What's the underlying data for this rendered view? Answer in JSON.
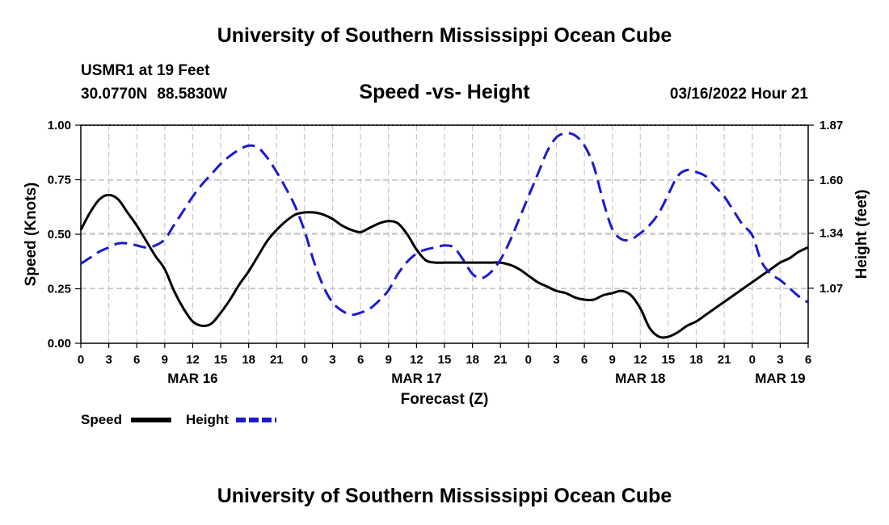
{
  "header": {
    "title": "University of Southern Mississippi Ocean Cube",
    "station": "USMR1 at 19 Feet",
    "latitude": "30.0770N",
    "longitude": "88.5830W",
    "datetime": "03/16/2022 Hour 21"
  },
  "footer": {
    "title": "University of Southern Mississippi Ocean Cube"
  },
  "legend": {
    "speed_label": "Speed",
    "height_label": "Height"
  },
  "colors": {
    "speed": "#000000",
    "height": "#1a1acc",
    "grid": "#c8c8c8",
    "axis": "#000000"
  },
  "chart_data": {
    "type": "line",
    "title": "Speed -vs- Height",
    "xlabel": "Forecast (Z)",
    "ylabel_left": "Speed (Knots)",
    "ylabel_right": "Height (feet)",
    "x_unit": "forecast hours from Mar 16 00Z",
    "xlim": [
      0,
      78
    ],
    "ylim_left": [
      0,
      1.0
    ],
    "ylim_right": [
      0.8,
      1.87
    ],
    "grid": true,
    "x_ticks": [
      0,
      3,
      6,
      9,
      12,
      15,
      18,
      21,
      24,
      27,
      30,
      33,
      36,
      39,
      42,
      45,
      48,
      51,
      54,
      57,
      60,
      63,
      66,
      69,
      72,
      75,
      78
    ],
    "x_tick_labels": [
      "0",
      "3",
      "6",
      "9",
      "12",
      "15",
      "18",
      "21",
      "0",
      "3",
      "6",
      "9",
      "12",
      "15",
      "18",
      "21",
      "0",
      "3",
      "6",
      "9",
      "12",
      "15",
      "18",
      "21",
      "0",
      "3",
      "6"
    ],
    "date_labels": [
      {
        "hour": 12,
        "label": "MAR 16"
      },
      {
        "hour": 36,
        "label": "MAR 17"
      },
      {
        "hour": 60,
        "label": "MAR 18"
      },
      {
        "hour": 75,
        "label": "MAR 19"
      }
    ],
    "y_left_ticks": [
      0.0,
      0.25,
      0.5,
      0.75,
      1.0
    ],
    "y_left_tick_labels": [
      "0.00",
      "0.25",
      "0.50",
      "0.75",
      "1.00"
    ],
    "y_right_ticks": [
      1.07,
      1.34,
      1.6,
      1.87
    ],
    "y_right_tick_labels": [
      "1.07",
      "1.34",
      "1.60",
      "1.87"
    ],
    "series": [
      {
        "name": "Speed",
        "axis": "left",
        "style": "solid",
        "x": [
          0,
          1,
          2,
          3,
          4,
          5,
          6,
          7,
          8,
          9,
          10,
          11,
          12,
          13,
          14,
          15,
          16,
          17,
          18,
          19,
          20,
          21,
          22,
          23,
          24,
          25,
          26,
          27,
          28,
          29,
          30,
          31,
          32,
          33,
          34,
          35,
          36,
          37,
          38,
          39,
          40,
          41,
          42,
          43,
          44,
          45,
          46,
          47,
          48,
          49,
          50,
          51,
          52,
          53,
          54,
          55,
          56,
          57,
          58,
          59,
          60,
          61,
          62,
          63,
          64,
          65,
          66,
          67,
          68,
          69,
          70,
          71,
          72,
          73,
          74,
          75,
          76,
          77,
          78
        ],
        "values": [
          0.52,
          0.6,
          0.66,
          0.68,
          0.66,
          0.6,
          0.54,
          0.47,
          0.4,
          0.34,
          0.24,
          0.16,
          0.1,
          0.08,
          0.09,
          0.14,
          0.2,
          0.27,
          0.33,
          0.4,
          0.47,
          0.52,
          0.56,
          0.59,
          0.6,
          0.6,
          0.59,
          0.57,
          0.54,
          0.52,
          0.51,
          0.53,
          0.55,
          0.56,
          0.55,
          0.5,
          0.43,
          0.38,
          0.37,
          0.37,
          0.37,
          0.37,
          0.37,
          0.37,
          0.37,
          0.37,
          0.36,
          0.34,
          0.31,
          0.28,
          0.26,
          0.24,
          0.23,
          0.21,
          0.2,
          0.2,
          0.22,
          0.23,
          0.24,
          0.22,
          0.16,
          0.07,
          0.03,
          0.03,
          0.05,
          0.08,
          0.1,
          0.13,
          0.16,
          0.19,
          0.22,
          0.25,
          0.28,
          0.31,
          0.34,
          0.37,
          0.39,
          0.42,
          0.44
        ]
      },
      {
        "name": "Height",
        "axis": "right",
        "style": "dashed",
        "x": [
          0,
          1,
          2,
          3,
          4,
          5,
          6,
          7,
          8,
          9,
          10,
          11,
          12,
          13,
          14,
          15,
          16,
          17,
          18,
          19,
          20,
          21,
          22,
          23,
          24,
          25,
          26,
          27,
          28,
          29,
          30,
          31,
          32,
          33,
          34,
          35,
          36,
          37,
          38,
          39,
          40,
          41,
          42,
          43,
          44,
          45,
          46,
          47,
          48,
          49,
          50,
          51,
          52,
          53,
          54,
          55,
          56,
          57,
          58,
          59,
          60,
          61,
          62,
          63,
          64,
          65,
          66,
          67,
          68,
          69,
          70,
          71,
          72,
          73,
          74,
          75,
          76,
          77,
          78
        ],
        "values": [
          1.19,
          1.22,
          1.25,
          1.27,
          1.29,
          1.29,
          1.28,
          1.27,
          1.28,
          1.31,
          1.38,
          1.45,
          1.52,
          1.58,
          1.63,
          1.68,
          1.72,
          1.75,
          1.77,
          1.76,
          1.71,
          1.64,
          1.56,
          1.47,
          1.35,
          1.2,
          1.08,
          1.0,
          0.96,
          0.94,
          0.95,
          0.97,
          1.01,
          1.06,
          1.14,
          1.2,
          1.24,
          1.26,
          1.27,
          1.28,
          1.27,
          1.21,
          1.14,
          1.12,
          1.15,
          1.21,
          1.3,
          1.41,
          1.52,
          1.63,
          1.74,
          1.81,
          1.83,
          1.82,
          1.77,
          1.67,
          1.5,
          1.36,
          1.31,
          1.31,
          1.34,
          1.38,
          1.44,
          1.53,
          1.62,
          1.65,
          1.64,
          1.62,
          1.57,
          1.52,
          1.45,
          1.38,
          1.33,
          1.2,
          1.14,
          1.11,
          1.07,
          1.03,
          1.0
        ]
      }
    ]
  }
}
